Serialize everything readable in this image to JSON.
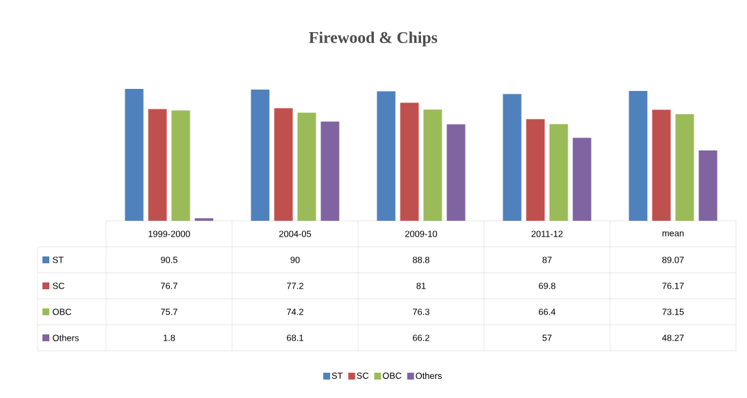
{
  "chart_data": {
    "type": "bar",
    "title": "Firewood & Chips",
    "categories": [
      "1999-2000",
      "2004-05",
      "2009-10",
      "2011-12",
      "mean"
    ],
    "series": [
      {
        "name": "ST",
        "color": "#4f81bd",
        "values": [
          90.5,
          90,
          88.8,
          87,
          89.07
        ]
      },
      {
        "name": "SC",
        "color": "#c0504d",
        "values": [
          76.7,
          77.2,
          81,
          69.8,
          76.17
        ]
      },
      {
        "name": "OBC",
        "color": "#9bbb59",
        "values": [
          75.7,
          74.2,
          76.3,
          66.4,
          73.15
        ]
      },
      {
        "name": "Others",
        "color": "#8064a2",
        "values": [
          1.8,
          68.1,
          66.2,
          57,
          48.27
        ]
      }
    ],
    "data_labels": true,
    "legend": "bottom"
  }
}
